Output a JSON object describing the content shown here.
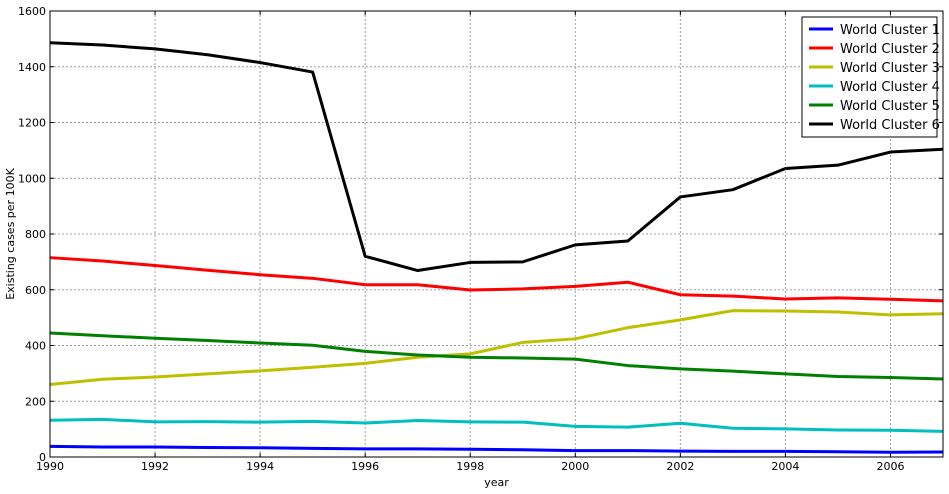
{
  "chart_data": {
    "type": "line",
    "xlabel": "year",
    "ylabel": "Existing cases per 100K",
    "xlim": [
      1990,
      2007
    ],
    "ylim": [
      0,
      1600
    ],
    "xticks": [
      "1990",
      "1992",
      "1994",
      "1996",
      "1998",
      "2000",
      "2002",
      "2004",
      "2006"
    ],
    "yticks": [
      "0",
      "200",
      "400",
      "600",
      "800",
      "1000",
      "1200",
      "1400",
      "1600"
    ],
    "grid": true,
    "legend_position": "top-right",
    "x": [
      1990,
      1991,
      1992,
      1993,
      1994,
      1995,
      1996,
      1997,
      1998,
      1999,
      2000,
      2001,
      2002,
      2003,
      2004,
      2005,
      2006,
      2007
    ],
    "series": [
      {
        "name": "World Cluster 1",
        "color": "#0000ff",
        "values": [
          38,
          36,
          36,
          34,
          33,
          31,
          29,
          29,
          28,
          26,
          23,
          23,
          21,
          20,
          20,
          19,
          17,
          18
        ]
      },
      {
        "name": "World Cluster 2",
        "color": "#ff0000",
        "values": [
          715,
          703,
          687,
          670,
          654,
          641,
          618,
          618,
          599,
          603,
          612,
          627,
          582,
          577,
          567,
          571,
          566,
          560
        ]
      },
      {
        "name": "World Cluster 3",
        "color": "#bfbf00",
        "values": [
          260,
          279,
          287,
          298,
          309,
          322,
          336,
          358,
          370,
          411,
          424,
          464,
          492,
          525,
          524,
          520,
          510,
          514
        ]
      },
      {
        "name": "World Cluster 4",
        "color": "#00bfbf",
        "values": [
          132,
          135,
          126,
          127,
          125,
          128,
          122,
          131,
          126,
          125,
          110,
          107,
          121,
          103,
          101,
          97,
          96,
          92
        ]
      },
      {
        "name": "World Cluster 5",
        "color": "#008000",
        "values": [
          445,
          435,
          426,
          418,
          409,
          401,
          379,
          366,
          358,
          355,
          351,
          328,
          316,
          308,
          298,
          289,
          285,
          280
        ]
      },
      {
        "name": "World Cluster 6",
        "color": "#000000",
        "values": [
          1486,
          1478,
          1464,
          1443,
          1415,
          1381,
          720,
          669,
          698,
          700,
          761,
          775,
          933,
          959,
          1035,
          1047,
          1094,
          1104
        ]
      }
    ]
  }
}
